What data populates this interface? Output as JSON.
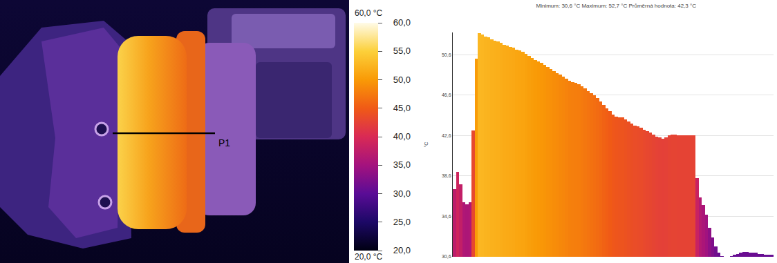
{
  "thermal_image": {
    "profile_label": "P1"
  },
  "colorbar": {
    "max_label": "60,0 °C",
    "min_label": "20,0 °C",
    "range": [
      20,
      60
    ],
    "ticks": [
      {
        "value": 60,
        "label": "60,0"
      },
      {
        "value": 55,
        "label": "55,0"
      },
      {
        "value": 50,
        "label": "50,0"
      },
      {
        "value": 45,
        "label": "45,0"
      },
      {
        "value": 40,
        "label": "40,0"
      },
      {
        "value": 35,
        "label": "35,0"
      },
      {
        "value": 30,
        "label": "30,0"
      },
      {
        "value": 25,
        "label": "25,0"
      },
      {
        "value": 20,
        "label": "20,0"
      }
    ]
  },
  "chart_data": {
    "type": "bar",
    "title": "Minimum: 30,6 °C Maximum: 52,7 °C Průměrná hodnota: 42,3 °C",
    "y_label": "°C",
    "categories": [
      null,
      null,
      null,
      null,
      null,
      null,
      null,
      null,
      null,
      null,
      null,
      null,
      null,
      null,
      null,
      null,
      null,
      null,
      null,
      null,
      null,
      null,
      null,
      null,
      null,
      null,
      null,
      null,
      null,
      null,
      null,
      null,
      null,
      null,
      null,
      null,
      null,
      null,
      null,
      null,
      null,
      null,
      null,
      null,
      null,
      null,
      null,
      null,
      null,
      null,
      null,
      null,
      null,
      null,
      null,
      null,
      null,
      null,
      null,
      null,
      null,
      null,
      null,
      null,
      null,
      null,
      null,
      null,
      null,
      null,
      null,
      null,
      null,
      null,
      null,
      null,
      null,
      null,
      null,
      null,
      null,
      null,
      null,
      null,
      null,
      null,
      null,
      null,
      null,
      null,
      null,
      null,
      null,
      null,
      null,
      null,
      null,
      null,
      null,
      null,
      null,
      null,
      null
    ],
    "values": [
      37.3,
      39.0,
      37.8,
      36.0,
      35.8,
      36.0,
      43.1,
      50.2,
      52.7,
      52.6,
      52.4,
      52.3,
      52.1,
      52.0,
      51.9,
      51.8,
      51.6,
      51.5,
      51.4,
      51.3,
      51.1,
      51.0,
      50.9,
      50.7,
      50.5,
      50.3,
      50.1,
      49.9,
      49.8,
      49.6,
      49.4,
      49.2,
      49.0,
      48.8,
      48.6,
      48.4,
      48.2,
      48.0,
      47.9,
      47.8,
      47.7,
      47.5,
      47.3,
      47.0,
      46.8,
      46.6,
      46.3,
      46.0,
      45.6,
      45.3,
      45.0,
      44.7,
      44.5,
      44.4,
      44.4,
      44.2,
      44.0,
      43.8,
      43.6,
      43.5,
      43.4,
      43.2,
      43.0,
      42.9,
      42.7,
      42.5,
      42.4,
      42.3,
      42.4,
      42.6,
      42.7,
      42.7,
      42.6,
      42.6,
      42.6,
      42.6,
      42.6,
      42.6,
      38.4,
      36.5,
      35.7,
      34.8,
      33.5,
      32.5,
      31.6,
      31.0,
      30.7,
      30.6,
      30.6,
      30.7,
      30.8,
      30.9,
      31.0,
      31.1,
      31.1,
      31.0,
      31.0,
      31.0,
      30.9,
      30.9,
      30.8,
      30.8,
      30.8
    ],
    "ylim": [
      30.6,
      52.8
    ],
    "yticks": [
      {
        "value": 30.6,
        "label": "30,6"
      },
      {
        "value": 34.6,
        "label": "34,6"
      },
      {
        "value": 38.6,
        "label": "38,6"
      },
      {
        "value": 42.6,
        "label": "42,6"
      },
      {
        "value": 46.6,
        "label": "46,6"
      },
      {
        "value": 50.6,
        "label": "50,6"
      }
    ],
    "grid": true,
    "tick_labels": "y"
  }
}
